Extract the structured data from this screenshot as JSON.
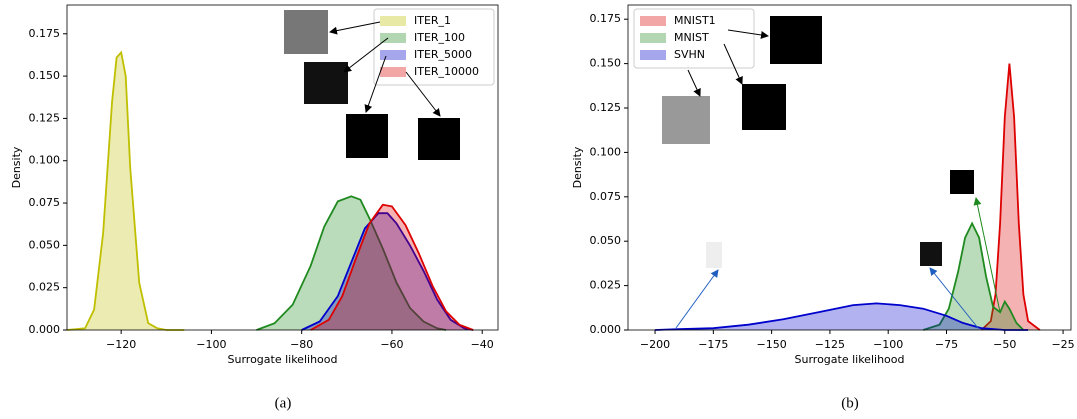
{
  "chart_data": [
    {
      "type": "line",
      "caption": "(a)",
      "xlabel": "Surrogate likelihood",
      "ylabel": "Density",
      "xlim": [
        -132,
        -36.5
      ],
      "ylim": [
        0,
        0.192
      ],
      "legend": "upper right",
      "xticks": [
        {
          "value": -120,
          "label": "−120"
        },
        {
          "value": -100,
          "label": "−100"
        },
        {
          "value": -80,
          "label": "−80"
        },
        {
          "value": -60,
          "label": "−60"
        },
        {
          "value": -40,
          "label": "−40"
        }
      ],
      "yticks": [
        {
          "value": 0,
          "label": "0.000"
        },
        {
          "value": 0.025,
          "label": "0.025"
        },
        {
          "value": 0.05,
          "label": "0.050"
        },
        {
          "value": 0.075,
          "label": "0.075"
        },
        {
          "value": 0.1,
          "label": "0.100"
        },
        {
          "value": 0.125,
          "label": "0.125"
        },
        {
          "value": 0.15,
          "label": "0.150"
        },
        {
          "value": 0.175,
          "label": "0.175"
        }
      ],
      "series": [
        {
          "name": "ITER_1",
          "color": "#bfbf00",
          "x": [
            -132,
            -128,
            -126,
            -124,
            -122,
            -121,
            -120,
            -119,
            -118,
            -116,
            -114,
            -112,
            -110,
            -106
          ],
          "values": [
            0,
            0.001,
            0.012,
            0.057,
            0.135,
            0.161,
            0.164,
            0.15,
            0.096,
            0.028,
            0.004,
            0.001,
            0,
            0
          ]
        },
        {
          "name": "ITER_100",
          "color": "#1f8a1f",
          "x": [
            -90,
            -86,
            -82,
            -78,
            -75,
            -72,
            -69,
            -67,
            -65,
            -62,
            -59,
            -56,
            -53,
            -50,
            -48
          ],
          "values": [
            0,
            0.004,
            0.015,
            0.038,
            0.061,
            0.076,
            0.079,
            0.077,
            0.066,
            0.048,
            0.028,
            0.013,
            0.005,
            0.001,
            0
          ]
        },
        {
          "name": "ITER_5000",
          "color": "#0000cc",
          "x": [
            -80,
            -76,
            -72,
            -69,
            -66,
            -63,
            -61,
            -59,
            -56,
            -53,
            -50,
            -47,
            -44,
            -42
          ],
          "values": [
            0,
            0.005,
            0.02,
            0.04,
            0.06,
            0.069,
            0.069,
            0.063,
            0.05,
            0.035,
            0.018,
            0.006,
            0.001,
            0
          ]
        },
        {
          "name": "ITER_10000",
          "color": "#dd0000",
          "x": [
            -78,
            -74,
            -71,
            -68,
            -65,
            -62,
            -60,
            -57,
            -54,
            -51,
            -48,
            -45,
            -42
          ],
          "values": [
            0,
            0.006,
            0.02,
            0.042,
            0.063,
            0.074,
            0.073,
            0.062,
            0.045,
            0.026,
            0.011,
            0.003,
            0
          ]
        }
      ]
    },
    {
      "type": "line",
      "caption": "(b)",
      "xlabel": "Surrogate likelihood",
      "ylabel": "Density",
      "xlim": [
        -211.6,
        -21.6
      ],
      "ylim": [
        0,
        0.183
      ],
      "legend": "upper left",
      "xticks": [
        {
          "value": -200,
          "label": "−200"
        },
        {
          "value": -175,
          "label": "−175"
        },
        {
          "value": -150,
          "label": "−150"
        },
        {
          "value": -125,
          "label": "−125"
        },
        {
          "value": -100,
          "label": "−100"
        },
        {
          "value": -75,
          "label": "−75"
        },
        {
          "value": -50,
          "label": "−50"
        },
        {
          "value": -25,
          "label": "−25"
        }
      ],
      "yticks": [
        {
          "value": 0,
          "label": "0.000"
        },
        {
          "value": 0.025,
          "label": "0.025"
        },
        {
          "value": 0.05,
          "label": "0.050"
        },
        {
          "value": 0.075,
          "label": "0.075"
        },
        {
          "value": 0.1,
          "label": "0.100"
        },
        {
          "value": 0.125,
          "label": "0.125"
        },
        {
          "value": 0.15,
          "label": "0.150"
        },
        {
          "value": 0.175,
          "label": "0.175"
        }
      ],
      "series": [
        {
          "name": "MNIST1",
          "color": "#dd0000",
          "x": [
            -60,
            -56,
            -54,
            -52,
            -50,
            -48,
            -46,
            -44,
            -42,
            -40,
            -35
          ],
          "values": [
            0,
            0.005,
            0.02,
            0.06,
            0.12,
            0.15,
            0.12,
            0.06,
            0.02,
            0.005,
            0
          ]
        },
        {
          "name": "MNIST",
          "color": "#1f8a1f",
          "x": [
            -85,
            -78,
            -74,
            -70,
            -67,
            -64,
            -61,
            -58,
            -55,
            -52,
            -50,
            -48,
            -45,
            -42
          ],
          "values": [
            0,
            0.003,
            0.012,
            0.033,
            0.052,
            0.06,
            0.052,
            0.03,
            0.013,
            0.01,
            0.016,
            0.012,
            0.004,
            0
          ]
        },
        {
          "name": "SVHN",
          "color": "#0000cc",
          "x": [
            -200,
            -190,
            -175,
            -160,
            -145,
            -130,
            -115,
            -105,
            -95,
            -85,
            -75,
            -68,
            -60,
            -50,
            -40
          ],
          "values": [
            0,
            0.0005,
            0.001,
            0.003,
            0.006,
            0.01,
            0.014,
            0.015,
            0.014,
            0.012,
            0.008,
            0.004,
            0.001,
            0,
            0
          ]
        }
      ]
    }
  ]
}
